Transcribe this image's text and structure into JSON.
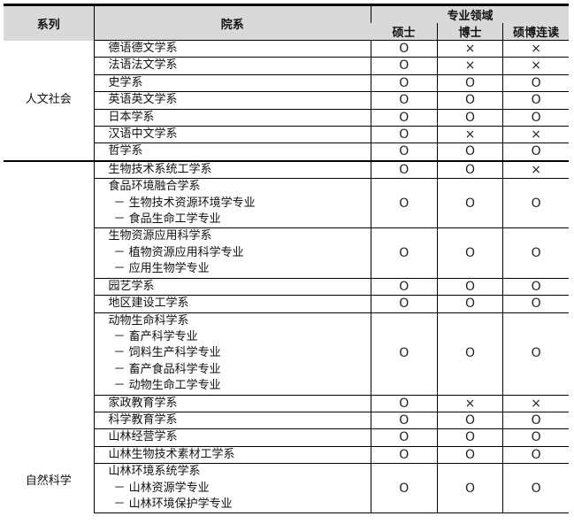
{
  "header": {
    "series": "系列",
    "department": "院系",
    "field": "专业领域",
    "master": "硕士",
    "doctor": "博士",
    "combined": "硕博连读"
  },
  "groups": [
    {
      "name": "人文社会",
      "rows": [
        {
          "dept": "德语德文学系",
          "subs": [],
          "marks": [
            "O",
            "×",
            "×"
          ]
        },
        {
          "dept": "法语法文学系",
          "subs": [],
          "marks": [
            "O",
            "×",
            "×"
          ]
        },
        {
          "dept": "史学系",
          "subs": [],
          "marks": [
            "O",
            "O",
            "O"
          ]
        },
        {
          "dept": "英语英文学系",
          "subs": [],
          "marks": [
            "O",
            "O",
            "O"
          ]
        },
        {
          "dept": "日本学系",
          "subs": [],
          "marks": [
            "O",
            "O",
            "O"
          ]
        },
        {
          "dept": "汉语中文学系",
          "subs": [],
          "marks": [
            "O",
            "×",
            "×"
          ]
        },
        {
          "dept": "哲学系",
          "subs": [],
          "marks": [
            "O",
            "O",
            "O"
          ]
        }
      ]
    },
    {
      "name": "自然科学",
      "rows": [
        {
          "dept": "生物技术系统工学系",
          "subs": [],
          "marks": [
            "O",
            "O",
            "×"
          ]
        },
        {
          "dept": "食品环境融合学系",
          "subs": [
            "－ 生物技术资源环境学专业",
            "－ 食品生命工学专业"
          ],
          "marks": [
            "O",
            "O",
            "O"
          ]
        },
        {
          "dept": "生物资源应用科学系",
          "subs": [
            "－ 植物资源应用科学专业",
            "－ 应用生物学专业"
          ],
          "marks": [
            "O",
            "O",
            "O"
          ]
        },
        {
          "dept": "园艺学系",
          "subs": [],
          "marks": [
            "O",
            "O",
            "O"
          ]
        },
        {
          "dept": "地区建设工学系",
          "subs": [],
          "marks": [
            "O",
            "O",
            "O"
          ]
        },
        {
          "dept": "动物生命科学系",
          "subs": [
            "－ 畜产科学专业",
            "－ 饲料生产科学专业",
            "－ 畜产食品科学专业",
            "－ 动物生命工学专业"
          ],
          "marks": [
            "O",
            "O",
            "O"
          ]
        },
        {
          "dept": "家政教育学系",
          "subs": [],
          "marks": [
            "O",
            "×",
            "×"
          ]
        },
        {
          "dept": "科学教育学系",
          "subs": [],
          "marks": [
            "O",
            "O",
            "O"
          ]
        },
        {
          "dept": "山林经营学系",
          "subs": [],
          "marks": [
            "O",
            "O",
            "O"
          ]
        },
        {
          "dept": "山林生物技术素材工学系",
          "subs": [],
          "marks": [
            "O",
            "O",
            "O"
          ]
        },
        {
          "dept": "山林环境系统学系",
          "subs": [
            "－ 山林资源学专业",
            "－ 山林环境保护学专业"
          ],
          "marks": [
            "O",
            "O",
            "O"
          ]
        }
      ]
    }
  ]
}
